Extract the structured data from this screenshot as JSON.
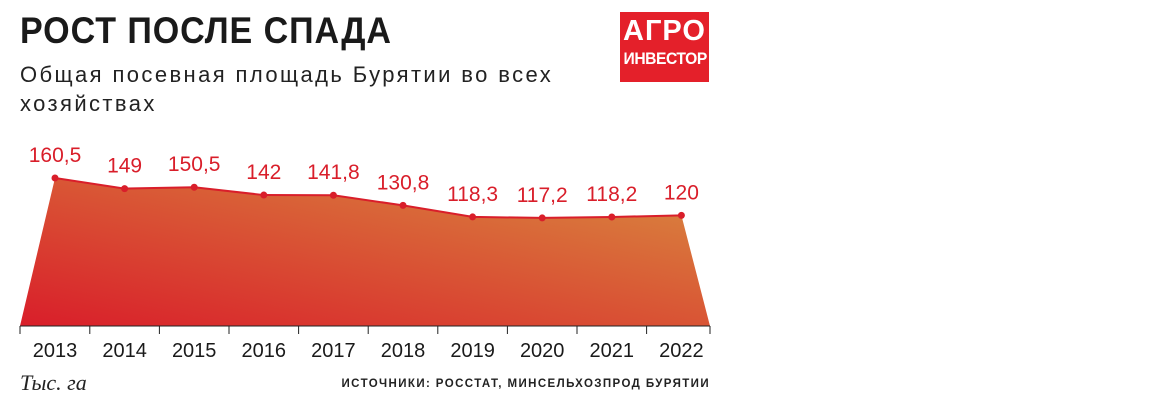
{
  "header": {
    "title": "РОСТ ПОСЛЕ СПАДА",
    "subtitle": "Общая посевная площадь Бурятии во всех хозяйствах"
  },
  "logo": {
    "line1": "АГРО",
    "line2": "ИНВЕСТОР"
  },
  "footer": {
    "unit": "Тыс. га",
    "source": "ИСТОЧНИКИ: РОССТАТ, МИНСЕЛЬХОЗПРОД БУРЯТИИ"
  },
  "chart_data": {
    "type": "area",
    "title": "РОСТ ПОСЛЕ СПАДА",
    "subtitle": "Общая посевная площадь Бурятии во всех хозяйствах",
    "categories": [
      "2013",
      "2014",
      "2015",
      "2016",
      "2017",
      "2018",
      "2019",
      "2020",
      "2021",
      "2022"
    ],
    "series": [
      {
        "values": [
          160.5,
          149,
          150.5,
          142,
          141.8,
          130.8,
          118.3,
          117.2,
          118.2,
          120
        ],
        "labels": [
          "160,5",
          "149",
          "150,5",
          "142",
          "141,8",
          "130,8",
          "118,3",
          "117,2",
          "118,2",
          "120"
        ]
      }
    ],
    "ylabel": "Тыс. га",
    "ylim": [
      0,
      160.5
    ],
    "grid": false,
    "legend": "none",
    "colors": {
      "fill_top": "#d97a3c",
      "fill_bottom": "#d91e2a",
      "line": "#d91e2a",
      "label": "#d91e2a"
    }
  }
}
